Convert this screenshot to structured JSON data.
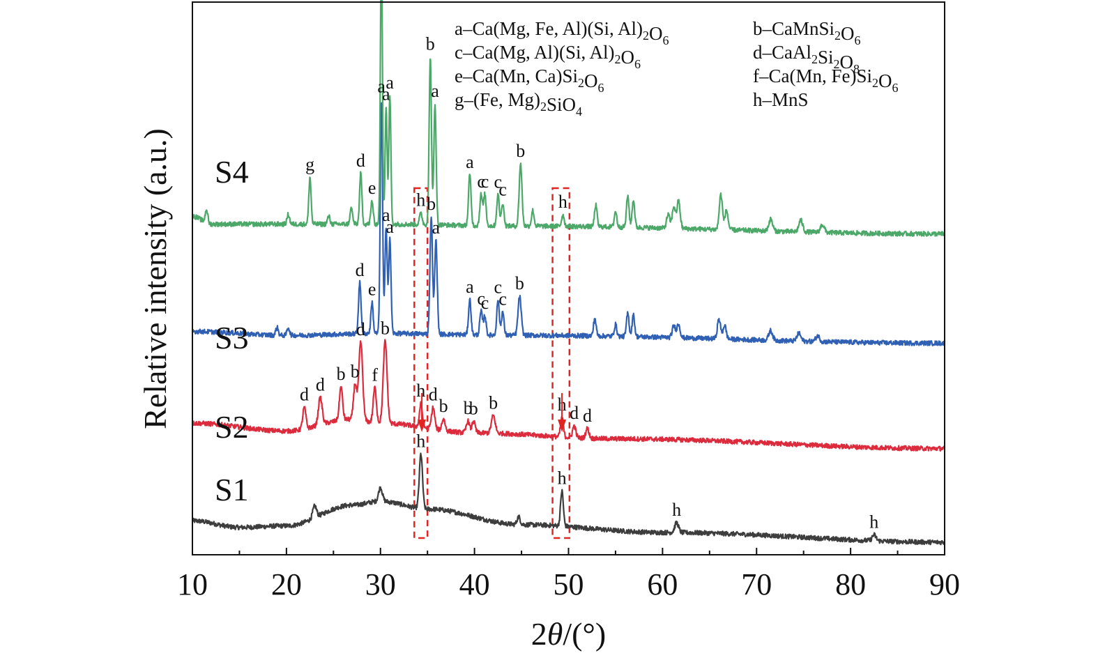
{
  "chart_data": {
    "type": "line",
    "xlabel": "2θ/(°)",
    "ylabel": "Relative intensity (a.u.)",
    "xlim": [
      10,
      90
    ],
    "xticks": [
      "10",
      "20",
      "30",
      "40",
      "50",
      "60",
      "70",
      "80",
      "90"
    ],
    "grid": false,
    "legend_entries": [
      "a–Ca(Mg, Fe, Al)(Si, Al)₂O₆",
      "b–CaMnSi₂O₆",
      "c–Ca(Mg, Al)(Si, Al)₂O₆",
      "d–CaAl₂Si₂O₈",
      "e–Ca(Mn, Ca)Si₂O₆",
      "f–Ca(Mn, Fe)Si₂O₆",
      "g–(Fe, Mg)₂SiO₄",
      "h–MnS"
    ],
    "series": [
      {
        "name": "S1",
        "color": "#3d3d3d",
        "baseline": 0.0,
        "background": [
          [
            10,
            0.55
          ],
          [
            15,
            0.38
          ],
          [
            20,
            0.42
          ],
          [
            27,
            0.95
          ],
          [
            30,
            1.05
          ],
          [
            35,
            0.85
          ],
          [
            45,
            0.45
          ],
          [
            60,
            0.25
          ],
          [
            90,
            0.0
          ]
        ],
        "peaks": [
          {
            "x": 34.3,
            "h": 1.4,
            "w": 0.25,
            "label": "h"
          },
          {
            "x": 49.3,
            "h": 0.9,
            "w": 0.22,
            "label": "h"
          },
          {
            "x": 61.5,
            "h": 0.25,
            "w": 0.3,
            "label": "h"
          },
          {
            "x": 82.5,
            "h": 0.15,
            "w": 0.3,
            "label": "h"
          },
          {
            "x": 23.0,
            "h": 0.3,
            "w": 0.3,
            "label": ""
          },
          {
            "x": 30.0,
            "h": 0.35,
            "w": 0.3,
            "label": ""
          },
          {
            "x": 44.7,
            "h": 0.2,
            "w": 0.25,
            "label": ""
          }
        ]
      },
      {
        "name": "S2",
        "color": "#dc2b3c",
        "baseline": 2.35,
        "background": [
          [
            10,
            0.7
          ],
          [
            20,
            0.5
          ],
          [
            27,
            0.8
          ],
          [
            30,
            0.7
          ],
          [
            40,
            0.45
          ],
          [
            55,
            0.3
          ],
          [
            90,
            0.05
          ]
        ],
        "peaks": [
          {
            "x": 21.9,
            "h": 0.55,
            "w": 0.25,
            "label": "d"
          },
          {
            "x": 23.6,
            "h": 0.7,
            "w": 0.3,
            "label": "d"
          },
          {
            "x": 25.8,
            "h": 0.85,
            "w": 0.25,
            "label": "b"
          },
          {
            "x": 27.3,
            "h": 0.9,
            "w": 0.25,
            "label": "b"
          },
          {
            "x": 27.9,
            "h": 2.0,
            "w": 0.3,
            "label": "d"
          },
          {
            "x": 29.4,
            "h": 0.9,
            "w": 0.25,
            "label": "f"
          },
          {
            "x": 30.5,
            "h": 2.1,
            "w": 0.3,
            "label": "b"
          },
          {
            "x": 34.3,
            "h": 0.6,
            "w": 0.22,
            "label": "h"
          },
          {
            "x": 35.6,
            "h": 0.55,
            "w": 0.25,
            "label": "d"
          },
          {
            "x": 36.7,
            "h": 0.3,
            "w": 0.25,
            "label": "b"
          },
          {
            "x": 39.3,
            "h": 0.3,
            "w": 0.25,
            "label": "b"
          },
          {
            "x": 39.9,
            "h": 0.3,
            "w": 0.25,
            "label": "b"
          },
          {
            "x": 42.0,
            "h": 0.45,
            "w": 0.3,
            "label": "b"
          },
          {
            "x": 49.3,
            "h": 0.5,
            "w": 0.22,
            "label": "h"
          },
          {
            "x": 50.6,
            "h": 0.3,
            "w": 0.25,
            "label": "d"
          },
          {
            "x": 52.0,
            "h": 0.25,
            "w": 0.25,
            "label": "d"
          }
        ]
      },
      {
        "name": "S3",
        "color": "#3060b3",
        "baseline": 5.05,
        "background": [
          [
            10,
            0.35
          ],
          [
            20,
            0.25
          ],
          [
            30,
            0.3
          ],
          [
            45,
            0.25
          ],
          [
            90,
            0.05
          ]
        ],
        "peaks": [
          {
            "x": 27.8,
            "h": 1.3,
            "w": 0.2,
            "label": "d"
          },
          {
            "x": 29.1,
            "h": 0.8,
            "w": 0.18,
            "label": "e"
          },
          {
            "x": 30.1,
            "h": 6.0,
            "w": 0.18,
            "label": "a"
          },
          {
            "x": 30.6,
            "h": 2.7,
            "w": 0.18,
            "label": "a"
          },
          {
            "x": 31.0,
            "h": 2.4,
            "w": 0.18,
            "label": "a"
          },
          {
            "x": 35.4,
            "h": 3.0,
            "w": 0.2,
            "label": "b"
          },
          {
            "x": 35.9,
            "h": 2.4,
            "w": 0.2,
            "label": "a"
          },
          {
            "x": 39.5,
            "h": 0.9,
            "w": 0.2,
            "label": "a"
          },
          {
            "x": 40.7,
            "h": 0.6,
            "w": 0.2,
            "label": "c"
          },
          {
            "x": 41.1,
            "h": 0.5,
            "w": 0.2,
            "label": "c"
          },
          {
            "x": 42.5,
            "h": 0.9,
            "w": 0.2,
            "label": "c"
          },
          {
            "x": 43.0,
            "h": 0.6,
            "w": 0.2,
            "label": "c"
          },
          {
            "x": 44.8,
            "h": 1.0,
            "w": 0.25,
            "label": "b"
          },
          {
            "x": 19.0,
            "h": 0.2,
            "w": 0.2,
            "label": ""
          },
          {
            "x": 20.2,
            "h": 0.2,
            "w": 0.2,
            "label": ""
          },
          {
            "x": 52.8,
            "h": 0.45,
            "w": 0.2,
            "label": ""
          },
          {
            "x": 55.0,
            "h": 0.3,
            "w": 0.2,
            "label": ""
          },
          {
            "x": 56.3,
            "h": 0.6,
            "w": 0.2,
            "label": ""
          },
          {
            "x": 56.9,
            "h": 0.55,
            "w": 0.2,
            "label": ""
          },
          {
            "x": 61.2,
            "h": 0.3,
            "w": 0.25,
            "label": ""
          },
          {
            "x": 61.7,
            "h": 0.35,
            "w": 0.25,
            "label": ""
          },
          {
            "x": 66.0,
            "h": 0.5,
            "w": 0.25,
            "label": ""
          },
          {
            "x": 66.6,
            "h": 0.35,
            "w": 0.25,
            "label": ""
          },
          {
            "x": 71.5,
            "h": 0.25,
            "w": 0.3,
            "label": ""
          },
          {
            "x": 74.5,
            "h": 0.2,
            "w": 0.3,
            "label": ""
          },
          {
            "x": 76.5,
            "h": 0.15,
            "w": 0.3,
            "label": ""
          }
        ]
      },
      {
        "name": "S4",
        "color": "#4ca868",
        "baseline": 7.85,
        "background": [
          [
            10,
            0.5
          ],
          [
            12,
            0.3
          ],
          [
            30,
            0.3
          ],
          [
            45,
            0.25
          ],
          [
            90,
            0.05
          ]
        ],
        "peaks": [
          {
            "x": 22.5,
            "h": 1.2,
            "w": 0.18,
            "label": "g"
          },
          {
            "x": 27.9,
            "h": 1.3,
            "w": 0.18,
            "label": "d"
          },
          {
            "x": 29.1,
            "h": 0.6,
            "w": 0.18,
            "label": "e"
          },
          {
            "x": 30.1,
            "h": 7.2,
            "w": 0.16,
            "label": "a"
          },
          {
            "x": 30.6,
            "h": 3.0,
            "w": 0.16,
            "label": "a"
          },
          {
            "x": 31.0,
            "h": 3.3,
            "w": 0.16,
            "label": "a"
          },
          {
            "x": 34.3,
            "h": 0.3,
            "w": 0.2,
            "label": "h"
          },
          {
            "x": 35.3,
            "h": 4.3,
            "w": 0.18,
            "label": "b"
          },
          {
            "x": 35.8,
            "h": 3.1,
            "w": 0.18,
            "label": "a"
          },
          {
            "x": 39.5,
            "h": 1.3,
            "w": 0.2,
            "label": "a"
          },
          {
            "x": 40.7,
            "h": 0.8,
            "w": 0.2,
            "label": "c"
          },
          {
            "x": 41.1,
            "h": 0.8,
            "w": 0.2,
            "label": "c"
          },
          {
            "x": 42.5,
            "h": 0.8,
            "w": 0.2,
            "label": "c"
          },
          {
            "x": 43.0,
            "h": 0.6,
            "w": 0.2,
            "label": "c"
          },
          {
            "x": 44.9,
            "h": 1.6,
            "w": 0.22,
            "label": "b"
          },
          {
            "x": 49.4,
            "h": 0.3,
            "w": 0.2,
            "label": "h"
          },
          {
            "x": 11.5,
            "h": 0.35,
            "w": 0.2,
            "label": ""
          },
          {
            "x": 20.2,
            "h": 0.25,
            "w": 0.2,
            "label": ""
          },
          {
            "x": 24.5,
            "h": 0.2,
            "w": 0.2,
            "label": ""
          },
          {
            "x": 26.9,
            "h": 0.4,
            "w": 0.2,
            "label": ""
          },
          {
            "x": 46.2,
            "h": 0.4,
            "w": 0.2,
            "label": ""
          },
          {
            "x": 52.9,
            "h": 0.55,
            "w": 0.2,
            "label": ""
          },
          {
            "x": 55.0,
            "h": 0.4,
            "w": 0.2,
            "label": ""
          },
          {
            "x": 56.3,
            "h": 0.8,
            "w": 0.2,
            "label": ""
          },
          {
            "x": 56.9,
            "h": 0.7,
            "w": 0.2,
            "label": ""
          },
          {
            "x": 60.6,
            "h": 0.35,
            "w": 0.25,
            "label": ""
          },
          {
            "x": 61.2,
            "h": 0.55,
            "w": 0.25,
            "label": ""
          },
          {
            "x": 61.7,
            "h": 0.7,
            "w": 0.25,
            "label": ""
          },
          {
            "x": 66.2,
            "h": 0.9,
            "w": 0.25,
            "label": ""
          },
          {
            "x": 66.8,
            "h": 0.5,
            "w": 0.25,
            "label": ""
          },
          {
            "x": 71.5,
            "h": 0.3,
            "w": 0.3,
            "label": ""
          },
          {
            "x": 74.7,
            "h": 0.3,
            "w": 0.3,
            "label": ""
          },
          {
            "x": 77.0,
            "h": 0.2,
            "w": 0.3,
            "label": ""
          }
        ]
      }
    ],
    "highlight_regions": [
      {
        "x0": 33.6,
        "x1": 35.0,
        "color": "#e02424"
      },
      {
        "x0": 48.3,
        "x1": 50.1,
        "color": "#e02424"
      }
    ],
    "arrows": [
      {
        "x": 34.4,
        "color": "#e02424"
      },
      {
        "x": 49.3,
        "color": "#e02424"
      }
    ]
  }
}
